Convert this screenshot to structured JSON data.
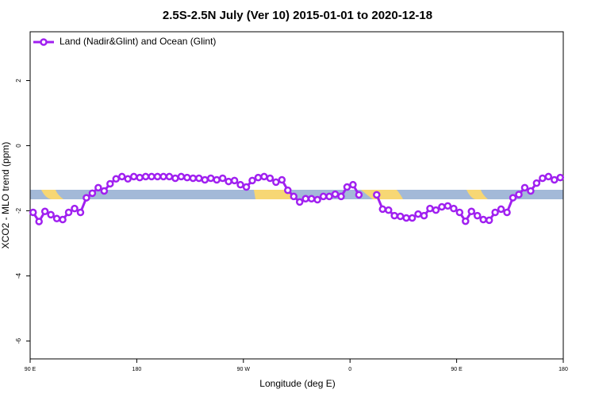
{
  "chart_data": {
    "type": "line",
    "title": "2.5S-2.5N July (Ver 10)   2015-01-01 to 2020-12-18",
    "x_label": "Longitude (deg E)",
    "y_label": "XCO2 - MLO trend (ppm)",
    "xlim": [
      90,
      540
    ],
    "ylim": [
      -6.55,
      3.5
    ],
    "xticks": [
      {
        "value": 90,
        "label": "90 E"
      },
      180,
      {
        "value": 270,
        "label": "90 W"
      },
      {
        "value": 360,
        "label": "0"
      },
      {
        "value": 450,
        "label": "90 E"
      },
      {
        "value": 540,
        "label": "180"
      }
    ],
    "yticks": [
      2,
      0,
      -2,
      -4,
      -6
    ],
    "legend": "top-left",
    "x": [
      92.5,
      97.5,
      102.5,
      107.5,
      112.5,
      117.5,
      122.5,
      127.5,
      132.5,
      137.5,
      142.5,
      147.5,
      152.5,
      157.5,
      162.5,
      167.5,
      172.5,
      177.5,
      182.5,
      187.5,
      192.5,
      197.5,
      202.5,
      207.5,
      212.5,
      217.5,
      222.5,
      227.5,
      232.5,
      237.5,
      242.5,
      247.5,
      252.5,
      257.5,
      262.5,
      267.5,
      272.5,
      277.5,
      282.5,
      287.5,
      292.5,
      297.5,
      302.5,
      307.5,
      312.5,
      317.5,
      322.5,
      327.5,
      332.5,
      337.5,
      342.5,
      347.5,
      352.5,
      357.5,
      362.5,
      367.5,
      372.5,
      377.5,
      382.5,
      387.5,
      392.5,
      397.5,
      402.5,
      407.5,
      412.5,
      417.5,
      422.5,
      427.5,
      432.5,
      437.5,
      442.5,
      447.5,
      452.5,
      457.5,
      462.5,
      467.5,
      472.5,
      477.5,
      482.5,
      487.5,
      492.5,
      497.5,
      502.5,
      507.5,
      512.5,
      517.5,
      522.5,
      527.5,
      532.5,
      537.5
    ],
    "series": [
      {
        "name": "Land (Nadir&Glint) and Ocean (Glint)",
        "color": "#a020f0",
        "values": [
          -2.05,
          -2.33,
          -2.02,
          -2.12,
          -2.24,
          -2.27,
          -2.05,
          -1.93,
          -2.05,
          -1.6,
          -1.46,
          -1.29,
          -1.39,
          -1.17,
          -1.02,
          -0.95,
          -1.02,
          -0.95,
          -0.98,
          -0.95,
          -0.95,
          -0.95,
          -0.95,
          -0.95,
          -1.0,
          -0.95,
          -0.98,
          -1.0,
          -1.0,
          -1.05,
          -1.0,
          -1.05,
          -1.0,
          -1.1,
          -1.07,
          -1.2,
          -1.27,
          -1.07,
          -0.98,
          -0.95,
          -1.0,
          -1.12,
          -1.05,
          -1.37,
          -1.56,
          -1.73,
          -1.63,
          -1.63,
          -1.66,
          -1.56,
          -1.56,
          -1.49,
          -1.56,
          -1.27,
          -1.2,
          -1.51,
          null,
          null,
          -1.51,
          -1.95,
          -1.98,
          -2.15,
          -2.17,
          -2.22,
          -2.22,
          -2.1,
          -2.15,
          -1.93,
          -1.98,
          -1.88,
          -1.85,
          -1.93,
          -2.05,
          -2.32,
          -2.02,
          -2.15,
          -2.27,
          -2.29,
          -2.05,
          -1.95,
          -2.05,
          -1.6,
          -1.5,
          -1.29,
          -1.39,
          -1.15,
          -1.0,
          -0.95,
          -1.05,
          -0.98
        ]
      }
    ]
  }
}
